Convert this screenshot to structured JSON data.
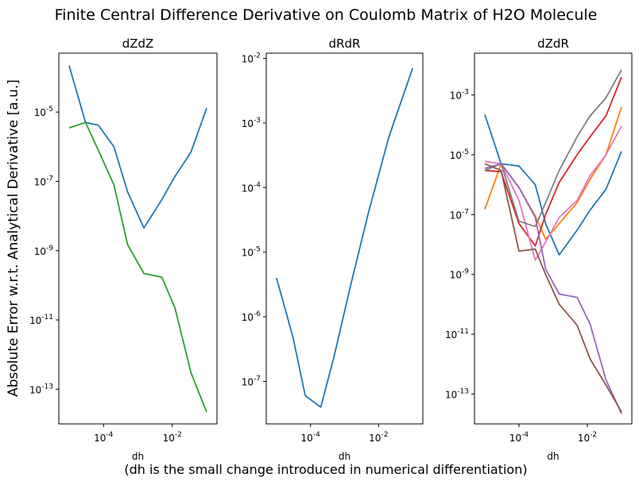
{
  "figure": {
    "title": "Finite Central Difference Derivative on Coulomb Matrix of H2O Molecule",
    "ylabel": "Absolute Error w.r.t. Analytical Derivative [a.u.]",
    "footer": "(dh is the small change introduced in numerical differentiation)"
  },
  "chart_data": [
    {
      "type": "line",
      "title": "dZdZ",
      "xlabel": "dh",
      "ylabel": "Absolute Error w.r.t. Analytical Derivative [a.u.]",
      "xscale": "log",
      "yscale": "log",
      "xlim": [
        5e-06,
        0.2
      ],
      "ylim": [
        1e-14,
        0.0005
      ],
      "xticks": [
        {
          "value": 0.0001,
          "label": "10^-4"
        },
        {
          "value": 0.01,
          "label": "10^-2"
        }
      ],
      "yticks": [
        {
          "value": 1e-05,
          "label": "10^-5"
        },
        {
          "value": 1e-07,
          "label": "10^-7"
        },
        {
          "value": 1e-09,
          "label": "10^-9"
        },
        {
          "value": 1e-11,
          "label": "10^-11"
        },
        {
          "value": 1e-13,
          "label": "10^-13"
        }
      ],
      "x": [
        1e-05,
        3e-05,
        7e-05,
        0.0002,
        0.0005,
        0.0015,
        0.005,
        0.012,
        0.035,
        0.1
      ],
      "series": [
        {
          "color": "#1f77b4",
          "values": [
            0.00022,
            5e-06,
            4.2e-06,
            1e-06,
            5e-08,
            4.5e-09,
            3e-08,
            1.4e-07,
            7e-07,
            1.3e-05
          ]
        },
        {
          "color": "#2ca02c",
          "values": [
            3.5e-06,
            5e-06,
            8e-07,
            8e-08,
            1.5e-09,
            2.2e-10,
            1.7e-10,
            2.2e-11,
            3e-13,
            2.2e-14
          ]
        }
      ]
    },
    {
      "type": "line",
      "title": "dRdR",
      "xlabel": "dh",
      "xscale": "log",
      "yscale": "log",
      "xlim": [
        5e-06,
        0.2
      ],
      "ylim": [
        2.2e-08,
        0.012
      ],
      "xticks": [
        {
          "value": 0.0001,
          "label": "10^-4"
        },
        {
          "value": 0.01,
          "label": "10^-2"
        }
      ],
      "yticks": [
        {
          "value": 0.01,
          "label": "10^-2"
        },
        {
          "value": 0.001,
          "label": "10^-3"
        },
        {
          "value": 0.0001,
          "label": "10^-4"
        },
        {
          "value": 1e-05,
          "label": "10^-5"
        },
        {
          "value": 1e-06,
          "label": "10^-6"
        },
        {
          "value": 1e-07,
          "label": "10^-7"
        }
      ],
      "x": [
        1e-05,
        3e-05,
        7e-05,
        0.0002,
        0.0005,
        0.0015,
        0.005,
        0.02,
        0.1
      ],
      "series": [
        {
          "color": "#1f77b4",
          "values": [
            4e-06,
            5e-07,
            6e-08,
            4e-08,
            2.5e-07,
            3e-06,
            4e-05,
            0.0006,
            0.007
          ]
        }
      ]
    },
    {
      "type": "line",
      "title": "dZdR",
      "xlabel": "dh",
      "xscale": "log",
      "yscale": "log",
      "xlim": [
        5e-06,
        0.2
      ],
      "ylim": [
        1e-14,
        0.025
      ],
      "xticks": [
        {
          "value": 0.0001,
          "label": "10^-4"
        },
        {
          "value": 0.01,
          "label": "10^-2"
        }
      ],
      "yticks": [
        {
          "value": 0.001,
          "label": "10^-3"
        },
        {
          "value": 1e-05,
          "label": "10^-5"
        },
        {
          "value": 1e-07,
          "label": "10^-7"
        },
        {
          "value": 1e-09,
          "label": "10^-9"
        },
        {
          "value": 1e-11,
          "label": "10^-11"
        },
        {
          "value": 1e-13,
          "label": "10^-13"
        }
      ],
      "x": [
        1e-05,
        3e-05,
        0.0001,
        0.0003,
        0.0006,
        0.0015,
        0.005,
        0.012,
        0.035,
        0.1
      ],
      "series": [
        {
          "color": "#1f77b4",
          "values": [
            0.00022,
            5e-06,
            4.2e-06,
            1e-06,
            5e-08,
            4.5e-09,
            3e-08,
            1.4e-07,
            7e-07,
            1.3e-05
          ]
        },
        {
          "color": "#ff7f0e",
          "values": [
            1.5e-07,
            5e-06,
            8e-07,
            9e-08,
            1.5e-08,
            5e-08,
            2.5e-07,
            1.5e-06,
            1e-05,
            0.0004
          ]
        },
        {
          "color": "#d62728",
          "values": [
            3e-06,
            2.7e-06,
            5e-08,
            9e-09,
            1e-07,
            1.2e-06,
            1e-05,
            4e-05,
            0.0002,
            0.004
          ]
        },
        {
          "color": "#e377c2",
          "values": [
            6e-06,
            5e-06,
            3e-07,
            3e-09,
            1.2e-08,
            8e-08,
            3e-07,
            2e-06,
            1e-05,
            9e-05
          ]
        },
        {
          "color": "#7f7f7f",
          "values": [
            3e-06,
            5e-06,
            6e-08,
            4e-08,
            2.5e-07,
            3e-06,
            4e-05,
            0.0002,
            0.0008,
            0.007
          ]
        },
        {
          "color": "#9467bd",
          "values": [
            3.5e-06,
            5e-06,
            8e-07,
            8e-08,
            1.5e-09,
            2.2e-10,
            1.7e-10,
            2.2e-11,
            3e-13,
            2.2e-14
          ]
        },
        {
          "color": "#8c564b",
          "values": [
            5e-06,
            3e-06,
            6e-09,
            7e-09,
            1e-09,
            1e-10,
            2e-11,
            1.5e-12,
            2e-13,
            2.5e-14
          ]
        }
      ]
    }
  ]
}
